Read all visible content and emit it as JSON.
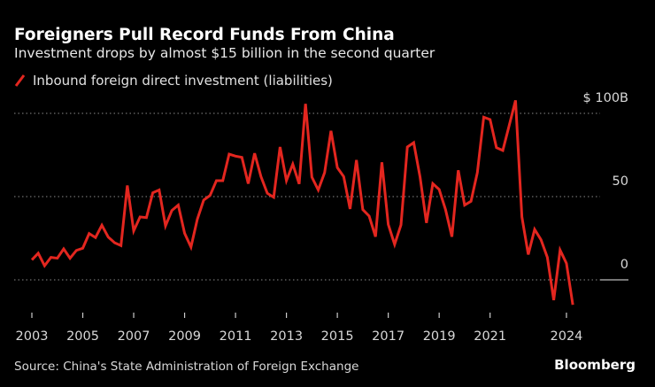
{
  "title": "Foreigners Pull Record Funds From China",
  "subtitle": "Investment drops by almost $15 billion in the second quarter",
  "source": "Source: China's State Administration of Foreign Exchange",
  "brand": "Bloomberg",
  "colors": {
    "background": "#000000",
    "series": "#e3261f",
    "text": "#ffffff"
  },
  "chart_data": {
    "type": "line",
    "title": "Foreigners Pull Record Funds From China",
    "subtitle": "Investment drops by almost $15 billion in the second quarter",
    "frequency": "quarterly",
    "x_start": "2003 Q1",
    "x_end": "2024 Q2",
    "ylim": [
      -20,
      110
    ],
    "y_ticks": [
      {
        "value": 100,
        "label": "$ 100B"
      },
      {
        "value": 50,
        "label": "50"
      },
      {
        "value": 0,
        "label": "0"
      }
    ],
    "x_ticks": [
      "2003",
      "2005",
      "2007",
      "2009",
      "2011",
      "2013",
      "2015",
      "2017",
      "2019",
      "2021",
      "2024"
    ],
    "grid": "horizontal dotted",
    "legend_position": "top-left",
    "series": [
      {
        "name": "Inbound foreign direct investment (liabilities)",
        "values": [
          12,
          16,
          8.5,
          13.5,
          13,
          18.6,
          13,
          17.7,
          19,
          27.8,
          25.4,
          32.8,
          25.7,
          22.3,
          20.6,
          56.7,
          29.4,
          37.8,
          37.4,
          52.3,
          54,
          32.4,
          41.7,
          44.9,
          28,
          19.7,
          36.4,
          47.9,
          50.7,
          59.6,
          59.6,
          75.5,
          74.3,
          73.6,
          57.8,
          76,
          62,
          52,
          49.6,
          79.8,
          59.6,
          69.5,
          57.6,
          105.7,
          61.7,
          54,
          64.4,
          89.5,
          67.4,
          62,
          42.6,
          72,
          42.2,
          38.3,
          25.9,
          70.6,
          33.3,
          21.3,
          33,
          79.8,
          82.4,
          61.7,
          34.2,
          57.8,
          54.3,
          42.2,
          25.9,
          65.8,
          44.9,
          47.2,
          64.4,
          97.7,
          96.3,
          79.4,
          77.7,
          92.7,
          107.8,
          37.8,
          15.2,
          30.3,
          24.1,
          13.5,
          -12.2,
          17.9,
          9.9,
          -15
        ]
      }
    ]
  }
}
